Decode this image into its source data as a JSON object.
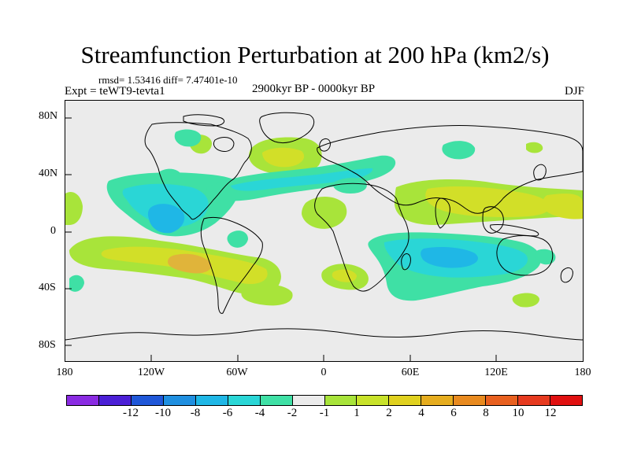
{
  "title": "Streamfunction Perturbation at 200 hPa (km2/s)",
  "stats": "rmsd= 1.53416 diff= 7.47401e-10",
  "experiment": "Expt = teWT9-tevta1",
  "period": "2900kyr BP - 0000kyr BP",
  "season": "DJF",
  "lat_labels": [
    "80N",
    "40N",
    "0",
    "40S",
    "80S"
  ],
  "lon_labels": [
    "180",
    "120W",
    "60W",
    "0",
    "60E",
    "120E",
    "180"
  ],
  "colorbar": {
    "colors": [
      "#8a2be2",
      "#4b1fd6",
      "#1f57d8",
      "#1f8fe0",
      "#1fb7e6",
      "#2ad6d6",
      "#3fe0a5",
      "#ebebeb",
      "#a8e43a",
      "#c8e22a",
      "#e0d11f",
      "#e6ad1f",
      "#e88a1f",
      "#e8601f",
      "#e63a1f",
      "#e01010"
    ],
    "labels": [
      "-12",
      "-10",
      "-8",
      "-6",
      "-4",
      "-2",
      "-1",
      "1",
      "2",
      "4",
      "6",
      "8",
      "10",
      "12"
    ]
  },
  "colors": {
    "pos1": "#a8e43a",
    "pos2": "#d2df28",
    "pos3": "#e0b43a",
    "neg1": "#3fe0a5",
    "neg2": "#2ad6d6",
    "neg3": "#1fb7e6",
    "background": "#ebebeb"
  }
}
